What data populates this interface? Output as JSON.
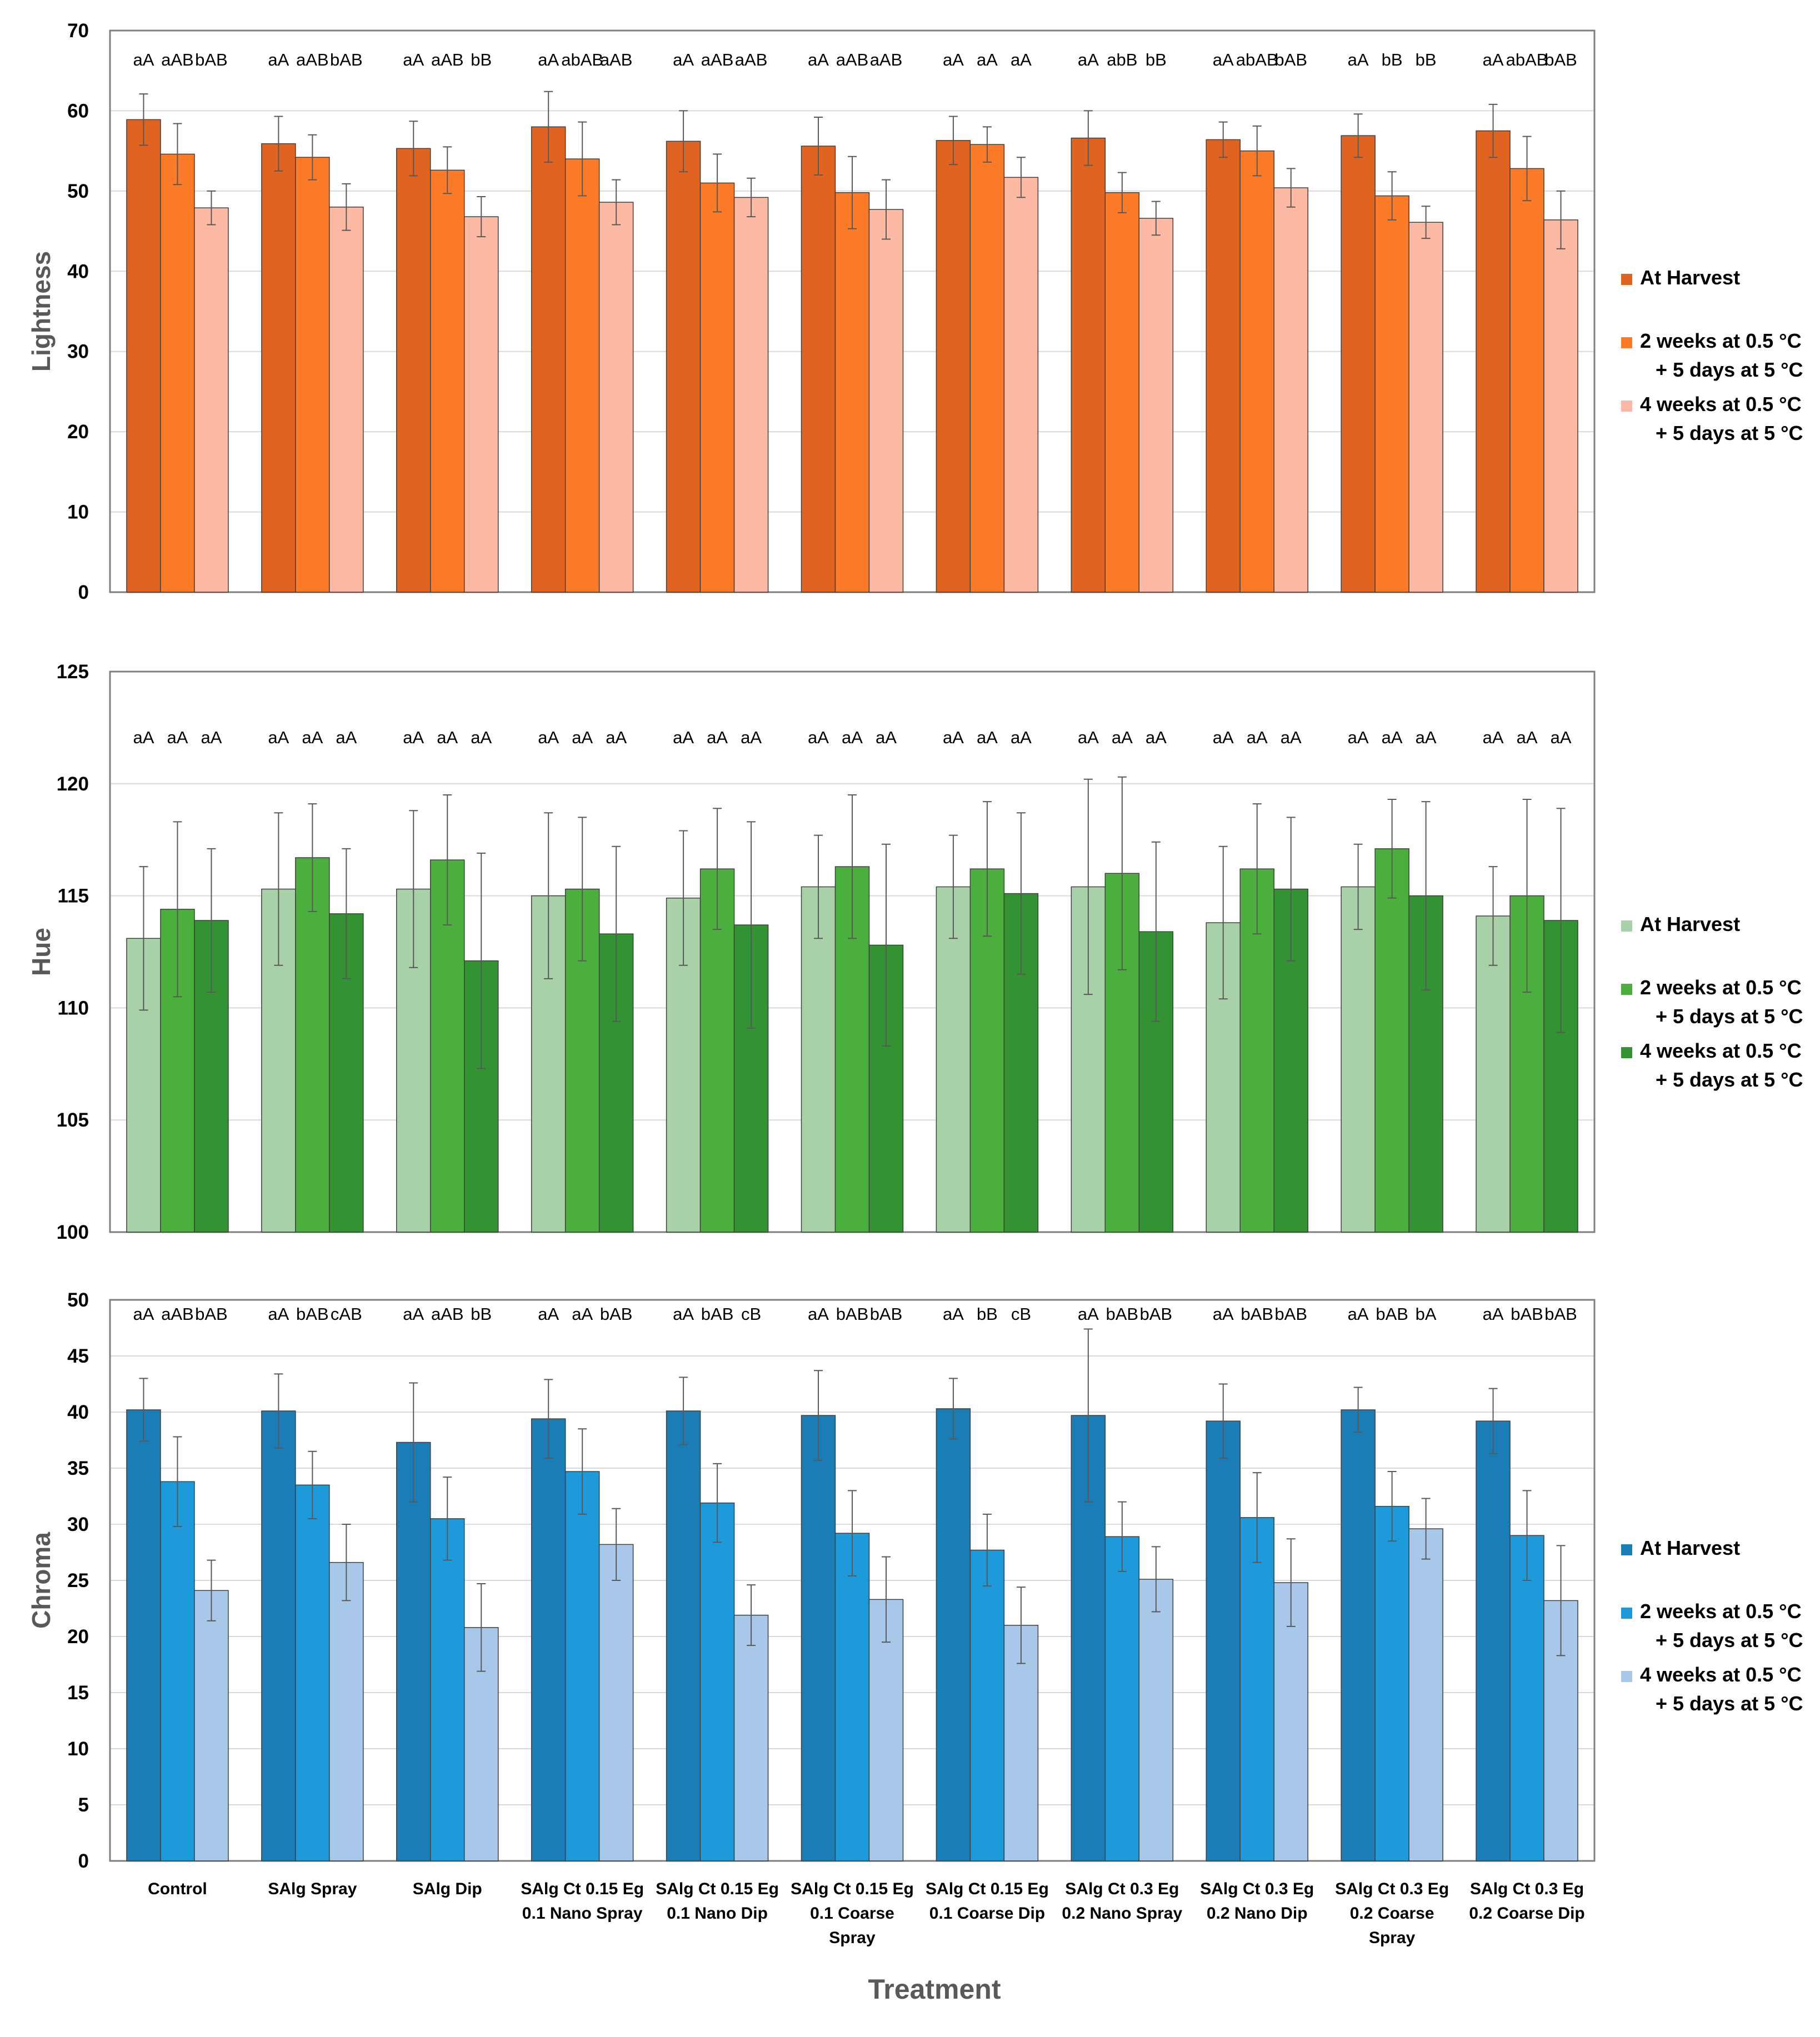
{
  "xlabel": "Treatment",
  "categories": [
    [
      "Control"
    ],
    [
      "SAlg  Spray"
    ],
    [
      "SAlg  Dip"
    ],
    [
      "SAlg Ct 0.15 Eg",
      "0.1 Nano Spray"
    ],
    [
      "SAlg Ct 0.15 Eg",
      "0.1 Nano Dip"
    ],
    [
      "SAlg Ct 0.15 Eg",
      "0.1 Coarse",
      "Spray"
    ],
    [
      "SAlg Ct 0.15 Eg",
      "0.1 Coarse Dip"
    ],
    [
      "SAlg Ct 0.3 Eg",
      "0.2 Nano Spray"
    ],
    [
      "SAlg Ct 0.3 Eg",
      "0.2 Nano Dip"
    ],
    [
      "SAlg Ct 0.3 Eg",
      "0.2 Coarse",
      "Spray"
    ],
    [
      "SAlg Ct 0.3 Eg",
      "0.2 Coarse Dip"
    ]
  ],
  "chart_data": [
    {
      "type": "bar",
      "ylabel": "Lightness",
      "ylim": [
        0,
        70
      ],
      "yticks": [
        0,
        10,
        20,
        30,
        40,
        50,
        60,
        70
      ],
      "legend_position": "right",
      "series": [
        {
          "name": [
            "At Harvest"
          ],
          "color": "#e0631f",
          "values": [
            58.9,
            55.9,
            55.3,
            58.0,
            56.2,
            55.6,
            56.3,
            56.6,
            56.4,
            56.9,
            57.5
          ],
          "errors": [
            3.2,
            3.4,
            3.4,
            4.4,
            3.8,
            3.6,
            3.0,
            3.4,
            2.2,
            2.7,
            3.3
          ],
          "sig": [
            "aA",
            "aA",
            "aA",
            "aA",
            "aA",
            "aA",
            "aA",
            "aA",
            "aA",
            "aA",
            "aA"
          ]
        },
        {
          "name": [
            "2 weeks at 0.5 °C",
            "+  5 days  at 5 °C"
          ],
          "color": "#fb7b29",
          "values": [
            54.6,
            54.2,
            52.6,
            54.0,
            51.0,
            49.8,
            55.8,
            49.8,
            55.0,
            49.4,
            52.8
          ],
          "errors": [
            3.8,
            2.8,
            2.9,
            4.6,
            3.6,
            4.5,
            2.2,
            2.5,
            3.1,
            3.0,
            4.0
          ],
          "sig": [
            "aAB",
            "aAB",
            "aAB",
            "abAB",
            "aAB",
            "aAB",
            "aA",
            "abB",
            "abAB",
            "bB",
            "abAB"
          ]
        },
        {
          "name": [
            "4 weeks at 0.5 °C",
            "+  5 days  at 5 °C"
          ],
          "color": "#fcb9a3",
          "values": [
            47.9,
            48.0,
            46.8,
            48.6,
            49.2,
            47.7,
            51.7,
            46.6,
            50.4,
            46.1,
            46.4
          ],
          "errors": [
            2.1,
            2.9,
            2.5,
            2.8,
            2.4,
            3.7,
            2.5,
            2.1,
            2.4,
            2.0,
            3.6
          ],
          "sig": [
            "bAB",
            "bAB",
            "bB",
            "aAB",
            "aAB",
            "aAB",
            "aA",
            "bB",
            "bAB",
            "bB",
            "bAB"
          ]
        }
      ]
    },
    {
      "type": "bar",
      "ylabel": "Hue",
      "ylim": [
        100,
        125
      ],
      "yticks": [
        100,
        105,
        110,
        115,
        120,
        125
      ],
      "legend_position": "right",
      "series": [
        {
          "name": [
            "At Harvest"
          ],
          "color": "#a9d1a8",
          "values": [
            113.1,
            115.3,
            115.3,
            115.0,
            114.9,
            115.4,
            115.4,
            115.4,
            113.8,
            115.4,
            114.1
          ],
          "errors": [
            3.2,
            3.4,
            3.5,
            3.7,
            3.0,
            2.3,
            2.3,
            4.8,
            3.4,
            1.9,
            2.2
          ],
          "sig": [
            "aA",
            "aA",
            "aA",
            "aA",
            "aA",
            "aA",
            "aA",
            "aA",
            "aA",
            "aA",
            "aA"
          ]
        },
        {
          "name": [
            "2 weeks at 0.5 °C",
            "+  5 days  at 5 °C"
          ],
          "color": "#4baf3e",
          "values": [
            114.4,
            116.7,
            116.6,
            115.3,
            116.2,
            116.3,
            116.2,
            116.0,
            116.2,
            117.1,
            115.0
          ],
          "errors": [
            3.9,
            2.4,
            2.9,
            3.2,
            2.7,
            3.2,
            3.0,
            4.3,
            2.9,
            2.2,
            4.3
          ],
          "sig": [
            "aA",
            "aA",
            "aA",
            "aA",
            "aA",
            "aA",
            "aA",
            "aA",
            "aA",
            "aA",
            "aA"
          ]
        },
        {
          "name": [
            "4 weeks at 0.5 °C",
            "+  5 days  at 5 °C"
          ],
          "color": "#339231",
          "values": [
            113.9,
            114.2,
            112.1,
            113.3,
            113.7,
            112.8,
            115.1,
            113.4,
            115.3,
            115.0,
            113.9
          ],
          "errors": [
            3.2,
            2.9,
            4.8,
            3.9,
            4.6,
            4.5,
            3.6,
            4.0,
            3.2,
            4.2,
            5.0
          ],
          "sig": [
            "aA",
            "aA",
            "aA",
            "aA",
            "aA",
            "aA",
            "aA",
            "aA",
            "aA",
            "aA",
            "aA"
          ]
        }
      ]
    },
    {
      "type": "bar",
      "ylabel": "Chroma",
      "ylim": [
        0,
        50
      ],
      "yticks": [
        0,
        5,
        10,
        15,
        20,
        25,
        30,
        35,
        40,
        45,
        50
      ],
      "legend_position": "right",
      "series": [
        {
          "name": [
            "At Harvest"
          ],
          "color": "#1a7db5",
          "values": [
            40.2,
            40.1,
            37.3,
            39.4,
            40.1,
            39.7,
            40.3,
            39.7,
            39.2,
            40.2,
            39.2
          ],
          "errors": [
            2.8,
            3.3,
            5.3,
            3.5,
            3.0,
            4.0,
            2.7,
            7.7,
            3.3,
            2.0,
            2.9
          ],
          "sig": [
            "aA",
            "aA",
            "aA",
            "aA",
            "aA",
            "aA",
            "aA",
            "aA",
            "aA",
            "aA",
            "aA"
          ]
        },
        {
          "name": [
            "2 weeks at 0.5 °C",
            "+  5 days  at 5 °C"
          ],
          "color": "#1c9ad9",
          "values": [
            33.8,
            33.5,
            30.5,
            34.7,
            31.9,
            29.2,
            27.7,
            28.9,
            30.6,
            31.6,
            29.0
          ],
          "errors": [
            4.0,
            3.0,
            3.7,
            3.8,
            3.5,
            3.8,
            3.2,
            3.1,
            4.0,
            3.1,
            4.0
          ],
          "sig": [
            "aAB",
            "bAB",
            "aAB",
            "aA",
            "bAB",
            "bAB",
            "bB",
            "bAB",
            "bAB",
            "bAB",
            "bAB"
          ]
        },
        {
          "name": [
            "4 weeks at 0.5 °C",
            "+  5 days  at 5 °C"
          ],
          "color": "#a7c8e8",
          "values": [
            24.1,
            26.6,
            20.8,
            28.2,
            21.9,
            23.3,
            21.0,
            25.1,
            24.8,
            29.6,
            23.2
          ],
          "errors": [
            2.7,
            3.4,
            3.9,
            3.2,
            2.7,
            3.8,
            3.4,
            2.9,
            3.9,
            2.7,
            4.9
          ],
          "sig": [
            "bAB",
            "cAB",
            "bB",
            "bAB",
            "cB",
            "bAB",
            "cB",
            "bAB",
            "bAB",
            "bA",
            "bAB"
          ]
        }
      ]
    }
  ]
}
